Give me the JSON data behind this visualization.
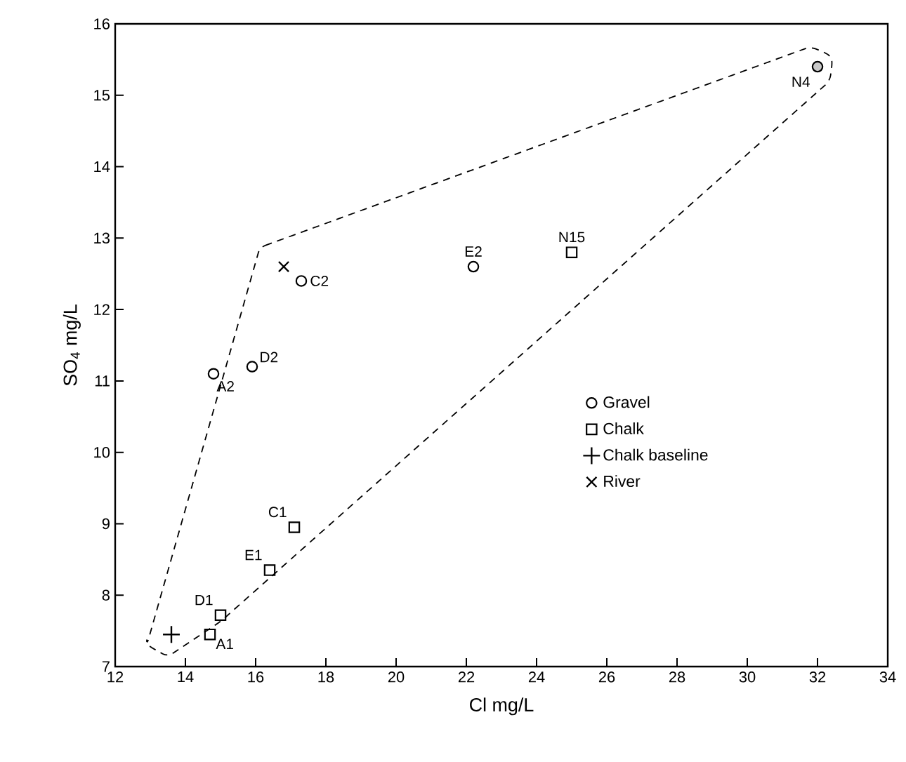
{
  "chart_data": {
    "type": "scatter",
    "xlabel": "Cl mg/L",
    "ylabel": "SO$_{4}$ mg/L",
    "xlim": [
      12,
      34
    ],
    "ylim": [
      7,
      16
    ],
    "xticks": [
      12,
      14,
      16,
      18,
      20,
      22,
      24,
      26,
      28,
      30,
      32,
      34
    ],
    "yticks": [
      7,
      8,
      9,
      10,
      11,
      12,
      13,
      14,
      15,
      16
    ],
    "legend": "right",
    "grid": false,
    "series": [
      {
        "name": "Gravel",
        "marker": "circle",
        "color": "#000000",
        "x": [
          14.8,
          15.9,
          17.3,
          22.2
        ],
        "values": [
          11.1,
          11.2,
          12.4,
          12.6
        ]
      },
      {
        "name": "Chalk",
        "marker": "square",
        "color": "#000000",
        "x": [
          14.7,
          15.0,
          16.4,
          17.1,
          25.0
        ],
        "values": [
          7.45,
          7.72,
          8.35,
          8.95,
          12.8
        ]
      },
      {
        "name": "Chalk baseline",
        "marker": "cross",
        "color": "#000000",
        "x": [
          13.6
        ],
        "values": [
          7.45
        ]
      },
      {
        "name": "River",
        "marker": "x",
        "color": "#000000",
        "x": [
          16.8
        ],
        "values": [
          12.6
        ]
      },
      {
        "marker": "circle",
        "color": "#c8c8c8",
        "x": [
          32.0
        ],
        "values": [
          15.4
        ]
      }
    ],
    "annotations": [
      {
        "text": "A2",
        "x": 14.8,
        "y": 11.1
      },
      {
        "text": "D2",
        "x": 15.9,
        "y": 11.2
      },
      {
        "text": "C2",
        "x": 17.3,
        "y": 12.4
      },
      {
        "text": "E2",
        "x": 22.2,
        "y": 12.6
      },
      {
        "text": "N15",
        "x": 25.0,
        "y": 12.8
      },
      {
        "text": "N4",
        "x": 32.0,
        "y": 15.4
      },
      {
        "text": "C1",
        "x": 17.1,
        "y": 8.95
      },
      {
        "text": "E1",
        "x": 16.4,
        "y": 8.35
      },
      {
        "text": "D1",
        "x": 15.0,
        "y": 7.72
      },
      {
        "text": "A1",
        "x": 14.7,
        "y": 7.45
      }
    ]
  }
}
